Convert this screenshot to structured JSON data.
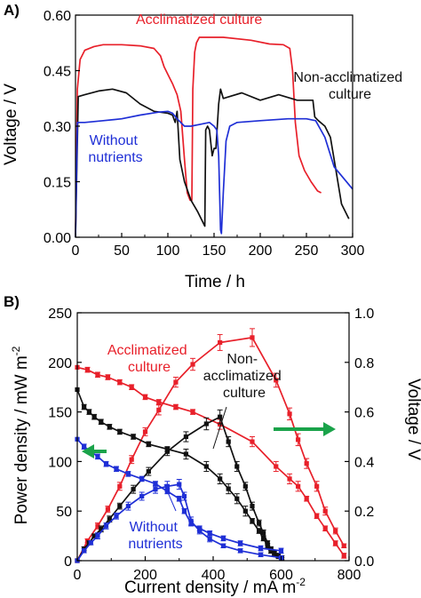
{
  "colors": {
    "red": "#e8202a",
    "black": "#111111",
    "blue": "#1f2fd6",
    "arrow_green": "#1aa34a"
  },
  "chart_data": [
    {
      "panel_label": "A)",
      "type": "line",
      "xlabel": "Time / h",
      "ylabel": "Voltage / V",
      "xlim": [
        0,
        300
      ],
      "ylim": [
        0,
        0.6
      ],
      "x_ticks": [
        "0",
        "50",
        "100",
        "150",
        "200",
        "250",
        "300"
      ],
      "y_ticks": [
        "0.00",
        "0.15",
        "0.30",
        "0.45",
        "0.60"
      ],
      "grid": false,
      "series": [
        {
          "name": "Acclimatized culture",
          "color": "#e8202a",
          "x": [
            0,
            2,
            5,
            10,
            20,
            30,
            50,
            70,
            85,
            92,
            96,
            100,
            105,
            110,
            114,
            118,
            121,
            124,
            126,
            127,
            129,
            131,
            134,
            140,
            160,
            190,
            210,
            225,
            232,
            235,
            238,
            242,
            248,
            255,
            262,
            266
          ],
          "y": [
            0.0,
            0.4,
            0.48,
            0.505,
            0.515,
            0.52,
            0.52,
            0.517,
            0.51,
            0.49,
            0.46,
            0.44,
            0.415,
            0.385,
            0.34,
            0.21,
            0.12,
            0.1,
            0.1,
            0.4,
            0.5,
            0.525,
            0.54,
            0.54,
            0.54,
            0.532,
            0.522,
            0.52,
            0.51,
            0.45,
            0.31,
            0.22,
            0.18,
            0.15,
            0.125,
            0.12
          ]
        },
        {
          "name": "Non-acclimatized culture",
          "color": "#111111",
          "x": [
            0,
            3,
            10,
            25,
            40,
            55,
            70,
            85,
            100,
            105,
            108,
            110,
            113,
            118,
            125,
            132,
            138,
            140,
            141,
            143,
            145,
            148,
            150,
            152,
            155,
            157,
            160,
            180,
            200,
            220,
            240,
            257,
            259,
            261,
            263,
            270,
            276,
            282,
            288,
            296
          ],
          "y": [
            0.0,
            0.38,
            0.385,
            0.395,
            0.4,
            0.39,
            0.36,
            0.34,
            0.335,
            0.33,
            0.31,
            0.34,
            0.21,
            0.15,
            0.1,
            0.07,
            0.04,
            0.03,
            0.29,
            0.3,
            0.29,
            0.22,
            0.24,
            0.24,
            0.36,
            0.4,
            0.375,
            0.39,
            0.37,
            0.385,
            0.37,
            0.37,
            0.325,
            0.32,
            0.315,
            0.3,
            0.27,
            0.18,
            0.09,
            0.05
          ]
        },
        {
          "name": "Without nutrients",
          "color": "#1f2fd6",
          "x": [
            0,
            2,
            10,
            30,
            50,
            70,
            90,
            100,
            105,
            110,
            118,
            125,
            135,
            145,
            150,
            153,
            155,
            157,
            158,
            160,
            163,
            167,
            175,
            200,
            230,
            250,
            260,
            270,
            280,
            290,
            300
          ],
          "y": [
            0.0,
            0.31,
            0.31,
            0.315,
            0.32,
            0.33,
            0.338,
            0.34,
            0.335,
            0.32,
            0.3,
            0.3,
            0.305,
            0.31,
            0.3,
            0.29,
            0.22,
            0.02,
            0.01,
            0.12,
            0.26,
            0.3,
            0.31,
            0.315,
            0.32,
            0.32,
            0.315,
            0.27,
            0.19,
            0.16,
            0.13
          ]
        }
      ],
      "annotations": [
        {
          "text": "Acclimatized culture",
          "color": "#e8202a"
        },
        {
          "lines": [
            "Non-acclimatized",
            "culture"
          ],
          "color": "#111111"
        },
        {
          "lines": [
            "Without",
            "nutrients"
          ],
          "color": "#1f2fd6"
        }
      ]
    },
    {
      "panel_label": "B)",
      "type": "line",
      "xlabel": "Current density / mA m",
      "xlabel_sup": "-2",
      "ylabel_left": "Power density / mW m",
      "ylabel_left_sup": "-2",
      "ylabel_right": "Voltage / V",
      "xlim": [
        0,
        800
      ],
      "ylim_left": [
        0,
        250
      ],
      "ylim_right": [
        0,
        1.0
      ],
      "x_ticks": [
        "0",
        "200",
        "400",
        "600",
        "800"
      ],
      "y_ticks_left": [
        "0",
        "50",
        "100",
        "150",
        "200",
        "250"
      ],
      "y_ticks_right": [
        "0.0",
        "0.2",
        "0.4",
        "0.6",
        "0.8",
        "1.0"
      ],
      "grid": false,
      "series": [
        {
          "name": "Acclimatized culture power",
          "axis": "left",
          "color": "#e8202a",
          "x": [
            0,
            30,
            60,
            90,
            125,
            160,
            200,
            240,
            290,
            340,
            420,
            515,
            585,
            625,
            650,
            675,
            705,
            730,
            760,
            785
          ],
          "y": [
            0,
            20,
            35,
            52,
            75,
            102,
            130,
            152,
            180,
            198,
            220,
            225,
            182,
            148,
            122,
            98,
            75,
            50,
            30,
            15
          ],
          "err": [
            0,
            2,
            3,
            3,
            4,
            4,
            4,
            5,
            5,
            6,
            8,
            9,
            7,
            6,
            6,
            5,
            5,
            4,
            3,
            2
          ]
        },
        {
          "name": "Acclimatized culture voltage",
          "axis": "right",
          "color": "#e8202a",
          "x": [
            0,
            30,
            60,
            90,
            125,
            160,
            200,
            240,
            290,
            340,
            420,
            515,
            585,
            625,
            650,
            675,
            705,
            730,
            760,
            785
          ],
          "y": [
            0.78,
            0.77,
            0.75,
            0.74,
            0.72,
            0.7,
            0.66,
            0.64,
            0.62,
            0.6,
            0.55,
            0.48,
            0.38,
            0.33,
            0.3,
            0.25,
            0.18,
            0.13,
            0.07,
            0.02
          ],
          "err": [
            0,
            0.01,
            0.01,
            0.01,
            0.01,
            0.01,
            0.01,
            0.01,
            0.01,
            0.01,
            0.02,
            0.02,
            0.02,
            0.02,
            0.02,
            0.01,
            0.01,
            0.01,
            0.01,
            0.01
          ]
        },
        {
          "name": "Non-acclimatized culture power",
          "axis": "left",
          "color": "#111111",
          "x": [
            0,
            20,
            35,
            50,
            70,
            95,
            125,
            165,
            210,
            265,
            320,
            380,
            420,
            445,
            470,
            495,
            515,
            535,
            548,
            560,
            570,
            580,
            592,
            602
          ],
          "y": [
            0,
            12,
            18,
            25,
            32,
            42,
            55,
            72,
            90,
            110,
            125,
            138,
            145,
            120,
            95,
            75,
            55,
            38,
            28,
            18,
            12,
            7,
            4,
            2
          ],
          "err": [
            0,
            2,
            2,
            2,
            3,
            3,
            3,
            4,
            4,
            4,
            5,
            6,
            7,
            5,
            5,
            4,
            4,
            3,
            3,
            2,
            2,
            2,
            1,
            1
          ]
        },
        {
          "name": "Non-acclimatized culture voltage",
          "axis": "right",
          "color": "#111111",
          "x": [
            0,
            20,
            35,
            50,
            70,
            95,
            125,
            165,
            210,
            265,
            320,
            380,
            420,
            445,
            470,
            495,
            515,
            535,
            548,
            560,
            570,
            580,
            592,
            602
          ],
          "y": [
            0.69,
            0.62,
            0.6,
            0.58,
            0.56,
            0.54,
            0.52,
            0.5,
            0.47,
            0.45,
            0.43,
            0.38,
            0.33,
            0.29,
            0.25,
            0.2,
            0.16,
            0.12,
            0.09,
            0.06,
            0.04,
            0.03,
            0.02,
            0.01
          ],
          "err": [
            0,
            0.01,
            0.01,
            0.01,
            0.01,
            0.01,
            0.01,
            0.01,
            0.01,
            0.01,
            0.02,
            0.02,
            0.02,
            0.02,
            0.02,
            0.02,
            0.01,
            0.01,
            0.01,
            0.01,
            0.01,
            0.01,
            0.01,
            0.01
          ]
        },
        {
          "name": "Without nutrients power",
          "axis": "left",
          "color": "#1f2fd6",
          "x": [
            0,
            20,
            40,
            60,
            85,
            115,
            150,
            190,
            230,
            265,
            300,
            315,
            335,
            360,
            390,
            430,
            480,
            540,
            600
          ],
          "y": [
            0,
            10,
            18,
            25,
            35,
            45,
            55,
            65,
            72,
            75,
            77,
            65,
            40,
            30,
            22,
            15,
            10,
            6,
            3
          ],
          "err": [
            0,
            2,
            2,
            3,
            3,
            3,
            4,
            4,
            4,
            5,
            5,
            4,
            4,
            3,
            3,
            2,
            2,
            2,
            1
          ]
        },
        {
          "name": "Without nutrients voltage",
          "axis": "right",
          "color": "#1f2fd6",
          "x": [
            0,
            20,
            40,
            60,
            85,
            115,
            150,
            190,
            230,
            265,
            300,
            315,
            335,
            360,
            390,
            430,
            480,
            540,
            600
          ],
          "y": [
            0.49,
            0.46,
            0.44,
            0.42,
            0.39,
            0.37,
            0.35,
            0.33,
            0.31,
            0.28,
            0.25,
            0.2,
            0.15,
            0.13,
            0.11,
            0.09,
            0.07,
            0.05,
            0.04
          ],
          "err": [
            0,
            0.01,
            0.01,
            0.01,
            0.01,
            0.01,
            0.01,
            0.01,
            0.01,
            0.01,
            0.01,
            0.01,
            0.01,
            0.01,
            0.01,
            0.01,
            0.01,
            0.01,
            0.01
          ]
        }
      ],
      "annotations": [
        {
          "lines": [
            "Acclimatized",
            "culture"
          ],
          "color": "#e8202a"
        },
        {
          "lines": [
            "Non-",
            "acclimatized",
            "culture"
          ],
          "color": "#111111"
        },
        {
          "lines": [
            "Without",
            "nutrients"
          ],
          "color": "#1f2fd6"
        }
      ],
      "arrows": [
        {
          "direction": "left",
          "axis": "left",
          "color": "#1aa34a"
        },
        {
          "direction": "right",
          "axis": "right",
          "color": "#1aa34a"
        }
      ]
    }
  ]
}
